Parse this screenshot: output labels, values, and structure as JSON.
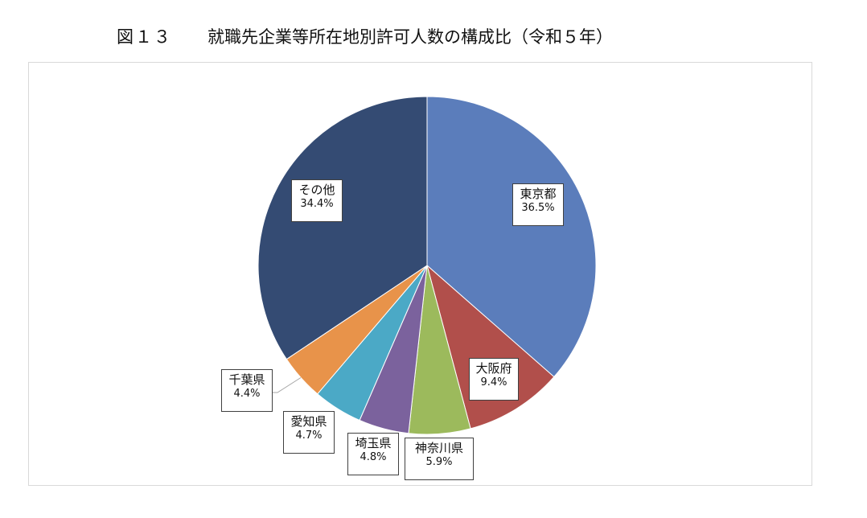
{
  "header": {
    "figure_number": "図１３",
    "title": "就職先企業等所在地別許可人数の構成比（令和５年）"
  },
  "chart_data": {
    "type": "pie",
    "title": "就職先企業等所在地別許可人数の構成比（令和５年）",
    "legend": "none",
    "start_angle": "12 o'clock",
    "direction": "clockwise",
    "slices": [
      {
        "name": "東京都",
        "value": 36.5,
        "label": "36.5%",
        "color": "#5b7dbb"
      },
      {
        "name": "大阪府",
        "value": 9.4,
        "label": "9.4%",
        "color": "#b14f4b"
      },
      {
        "name": "神奈川県",
        "value": 5.9,
        "label": "5.9%",
        "color": "#9cba5c"
      },
      {
        "name": "埼玉県",
        "value": 4.8,
        "label": "4.8%",
        "color": "#7b629d"
      },
      {
        "name": "愛知県",
        "value": 4.7,
        "label": "4.7%",
        "color": "#4ba9c6"
      },
      {
        "name": "千葉県",
        "value": 4.4,
        "label": "4.4%",
        "color": "#e8934a"
      },
      {
        "name": "その他",
        "value": 34.4,
        "label": "34.4%",
        "color": "#344b73"
      }
    ]
  }
}
